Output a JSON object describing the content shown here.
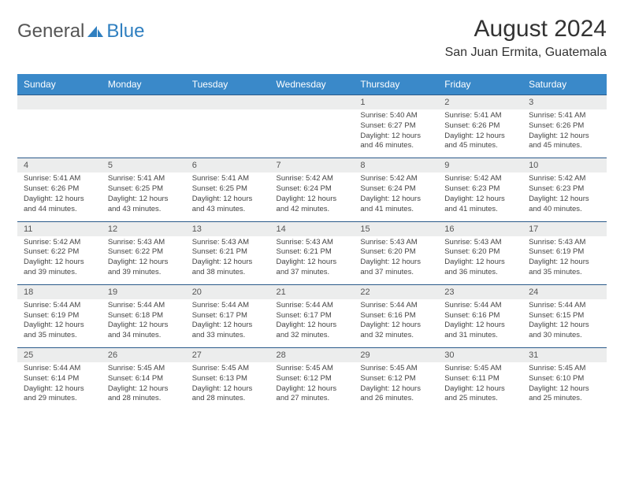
{
  "brand": {
    "name_left": "General",
    "name_right": "Blue"
  },
  "title": {
    "month": "August 2024",
    "location": "San Juan Ermita, Guatemala"
  },
  "colors": {
    "header_bg": "#3a89c9",
    "header_text": "#ffffff",
    "daynum_bg": "#eceded",
    "border_top": "#2a5a8a",
    "text": "#444444",
    "brand_gray": "#555555",
    "brand_blue": "#2f7fc0",
    "page_bg": "#ffffff"
  },
  "day_headers": [
    "Sunday",
    "Monday",
    "Tuesday",
    "Wednesday",
    "Thursday",
    "Friday",
    "Saturday"
  ],
  "weeks": [
    {
      "nums": [
        "",
        "",
        "",
        "",
        "1",
        "2",
        "3"
      ],
      "cells": [
        null,
        null,
        null,
        null,
        {
          "sunrise": "Sunrise: 5:40 AM",
          "sunset": "Sunset: 6:27 PM",
          "d1": "Daylight: 12 hours",
          "d2": "and 46 minutes."
        },
        {
          "sunrise": "Sunrise: 5:41 AM",
          "sunset": "Sunset: 6:26 PM",
          "d1": "Daylight: 12 hours",
          "d2": "and 45 minutes."
        },
        {
          "sunrise": "Sunrise: 5:41 AM",
          "sunset": "Sunset: 6:26 PM",
          "d1": "Daylight: 12 hours",
          "d2": "and 45 minutes."
        }
      ]
    },
    {
      "nums": [
        "4",
        "5",
        "6",
        "7",
        "8",
        "9",
        "10"
      ],
      "cells": [
        {
          "sunrise": "Sunrise: 5:41 AM",
          "sunset": "Sunset: 6:26 PM",
          "d1": "Daylight: 12 hours",
          "d2": "and 44 minutes."
        },
        {
          "sunrise": "Sunrise: 5:41 AM",
          "sunset": "Sunset: 6:25 PM",
          "d1": "Daylight: 12 hours",
          "d2": "and 43 minutes."
        },
        {
          "sunrise": "Sunrise: 5:41 AM",
          "sunset": "Sunset: 6:25 PM",
          "d1": "Daylight: 12 hours",
          "d2": "and 43 minutes."
        },
        {
          "sunrise": "Sunrise: 5:42 AM",
          "sunset": "Sunset: 6:24 PM",
          "d1": "Daylight: 12 hours",
          "d2": "and 42 minutes."
        },
        {
          "sunrise": "Sunrise: 5:42 AM",
          "sunset": "Sunset: 6:24 PM",
          "d1": "Daylight: 12 hours",
          "d2": "and 41 minutes."
        },
        {
          "sunrise": "Sunrise: 5:42 AM",
          "sunset": "Sunset: 6:23 PM",
          "d1": "Daylight: 12 hours",
          "d2": "and 41 minutes."
        },
        {
          "sunrise": "Sunrise: 5:42 AM",
          "sunset": "Sunset: 6:23 PM",
          "d1": "Daylight: 12 hours",
          "d2": "and 40 minutes."
        }
      ]
    },
    {
      "nums": [
        "11",
        "12",
        "13",
        "14",
        "15",
        "16",
        "17"
      ],
      "cells": [
        {
          "sunrise": "Sunrise: 5:42 AM",
          "sunset": "Sunset: 6:22 PM",
          "d1": "Daylight: 12 hours",
          "d2": "and 39 minutes."
        },
        {
          "sunrise": "Sunrise: 5:43 AM",
          "sunset": "Sunset: 6:22 PM",
          "d1": "Daylight: 12 hours",
          "d2": "and 39 minutes."
        },
        {
          "sunrise": "Sunrise: 5:43 AM",
          "sunset": "Sunset: 6:21 PM",
          "d1": "Daylight: 12 hours",
          "d2": "and 38 minutes."
        },
        {
          "sunrise": "Sunrise: 5:43 AM",
          "sunset": "Sunset: 6:21 PM",
          "d1": "Daylight: 12 hours",
          "d2": "and 37 minutes."
        },
        {
          "sunrise": "Sunrise: 5:43 AM",
          "sunset": "Sunset: 6:20 PM",
          "d1": "Daylight: 12 hours",
          "d2": "and 37 minutes."
        },
        {
          "sunrise": "Sunrise: 5:43 AM",
          "sunset": "Sunset: 6:20 PM",
          "d1": "Daylight: 12 hours",
          "d2": "and 36 minutes."
        },
        {
          "sunrise": "Sunrise: 5:43 AM",
          "sunset": "Sunset: 6:19 PM",
          "d1": "Daylight: 12 hours",
          "d2": "and 35 minutes."
        }
      ]
    },
    {
      "nums": [
        "18",
        "19",
        "20",
        "21",
        "22",
        "23",
        "24"
      ],
      "cells": [
        {
          "sunrise": "Sunrise: 5:44 AM",
          "sunset": "Sunset: 6:19 PM",
          "d1": "Daylight: 12 hours",
          "d2": "and 35 minutes."
        },
        {
          "sunrise": "Sunrise: 5:44 AM",
          "sunset": "Sunset: 6:18 PM",
          "d1": "Daylight: 12 hours",
          "d2": "and 34 minutes."
        },
        {
          "sunrise": "Sunrise: 5:44 AM",
          "sunset": "Sunset: 6:17 PM",
          "d1": "Daylight: 12 hours",
          "d2": "and 33 minutes."
        },
        {
          "sunrise": "Sunrise: 5:44 AM",
          "sunset": "Sunset: 6:17 PM",
          "d1": "Daylight: 12 hours",
          "d2": "and 32 minutes."
        },
        {
          "sunrise": "Sunrise: 5:44 AM",
          "sunset": "Sunset: 6:16 PM",
          "d1": "Daylight: 12 hours",
          "d2": "and 32 minutes."
        },
        {
          "sunrise": "Sunrise: 5:44 AM",
          "sunset": "Sunset: 6:16 PM",
          "d1": "Daylight: 12 hours",
          "d2": "and 31 minutes."
        },
        {
          "sunrise": "Sunrise: 5:44 AM",
          "sunset": "Sunset: 6:15 PM",
          "d1": "Daylight: 12 hours",
          "d2": "and 30 minutes."
        }
      ]
    },
    {
      "nums": [
        "25",
        "26",
        "27",
        "28",
        "29",
        "30",
        "31"
      ],
      "cells": [
        {
          "sunrise": "Sunrise: 5:44 AM",
          "sunset": "Sunset: 6:14 PM",
          "d1": "Daylight: 12 hours",
          "d2": "and 29 minutes."
        },
        {
          "sunrise": "Sunrise: 5:45 AM",
          "sunset": "Sunset: 6:14 PM",
          "d1": "Daylight: 12 hours",
          "d2": "and 28 minutes."
        },
        {
          "sunrise": "Sunrise: 5:45 AM",
          "sunset": "Sunset: 6:13 PM",
          "d1": "Daylight: 12 hours",
          "d2": "and 28 minutes."
        },
        {
          "sunrise": "Sunrise: 5:45 AM",
          "sunset": "Sunset: 6:12 PM",
          "d1": "Daylight: 12 hours",
          "d2": "and 27 minutes."
        },
        {
          "sunrise": "Sunrise: 5:45 AM",
          "sunset": "Sunset: 6:12 PM",
          "d1": "Daylight: 12 hours",
          "d2": "and 26 minutes."
        },
        {
          "sunrise": "Sunrise: 5:45 AM",
          "sunset": "Sunset: 6:11 PM",
          "d1": "Daylight: 12 hours",
          "d2": "and 25 minutes."
        },
        {
          "sunrise": "Sunrise: 5:45 AM",
          "sunset": "Sunset: 6:10 PM",
          "d1": "Daylight: 12 hours",
          "d2": "and 25 minutes."
        }
      ]
    }
  ]
}
